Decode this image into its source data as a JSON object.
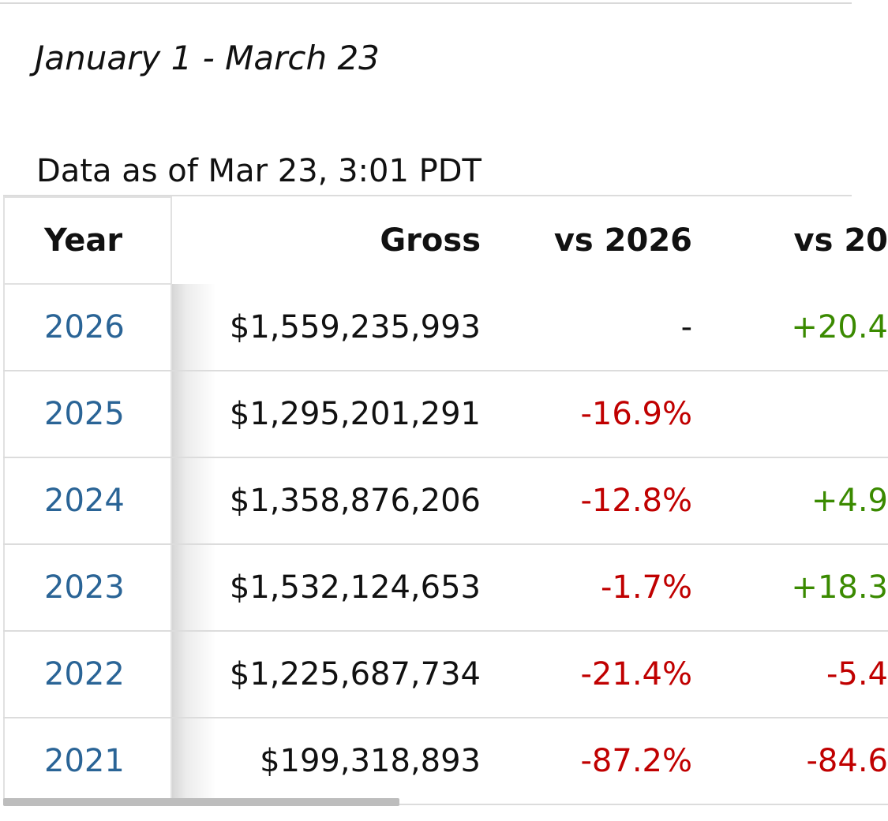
{
  "header": {
    "range_title": "January 1 - March 23",
    "data_as_of": "Data as of Mar 23, 3:01 PDT"
  },
  "table": {
    "columns": [
      "Year",
      "Gross",
      "vs 2026",
      "vs 20"
    ],
    "rows": [
      {
        "year": "2026",
        "gross": "$1,559,235,993",
        "vs_2026": "-",
        "vs_2026_tone": "neutral",
        "vs_next": "+20.4",
        "vs_next_tone": "pos"
      },
      {
        "year": "2025",
        "gross": "$1,295,201,291",
        "vs_2026": "-16.9%",
        "vs_2026_tone": "neg",
        "vs_next": "",
        "vs_next_tone": "neutral"
      },
      {
        "year": "2024",
        "gross": "$1,358,876,206",
        "vs_2026": "-12.8%",
        "vs_2026_tone": "neg",
        "vs_next": "+4.9",
        "vs_next_tone": "pos"
      },
      {
        "year": "2023",
        "gross": "$1,532,124,653",
        "vs_2026": "-1.7%",
        "vs_2026_tone": "neg",
        "vs_next": "+18.3",
        "vs_next_tone": "pos"
      },
      {
        "year": "2022",
        "gross": "$1,225,687,734",
        "vs_2026": "-21.4%",
        "vs_2026_tone": "neg",
        "vs_next": "-5.4",
        "vs_next_tone": "neg"
      },
      {
        "year": "2021",
        "gross": "$199,318,893",
        "vs_2026": "-87.2%",
        "vs_2026_tone": "neg",
        "vs_next": "-84.6",
        "vs_next_tone": "neg"
      }
    ]
  },
  "colors": {
    "year_link": "#2a6496",
    "negative": "#c00000",
    "positive": "#3a8a00"
  }
}
